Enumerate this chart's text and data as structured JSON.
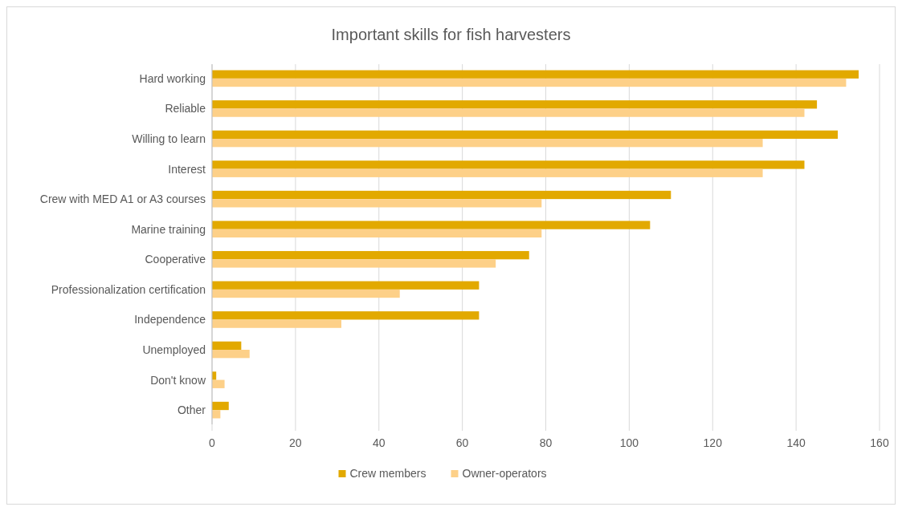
{
  "chart_data": {
    "type": "bar",
    "orientation": "horizontal",
    "title": "Important skills for fish harvesters",
    "categories": [
      "Hard working",
      "Reliable",
      "Willing to learn",
      "Interest",
      "Crew with MED A1 or A3 courses",
      "Marine training",
      "Cooperative",
      "Professionalization certification",
      "Independence",
      "Unemployed",
      "Don't know",
      "Other"
    ],
    "series": [
      {
        "name": "Crew members",
        "color": "#e2a900",
        "values": [
          155,
          145,
          150,
          142,
          110,
          105,
          76,
          64,
          64,
          7,
          1,
          4
        ]
      },
      {
        "name": "Owner-operators",
        "color": "#fdd088",
        "values": [
          152,
          142,
          132,
          132,
          79,
          79,
          68,
          45,
          31,
          9,
          3,
          2
        ]
      }
    ],
    "xlim": [
      0,
      160
    ],
    "xticks": [
      0,
      20,
      40,
      60,
      80,
      100,
      120,
      140,
      160
    ],
    "grid": "x",
    "legend": "bottom"
  }
}
